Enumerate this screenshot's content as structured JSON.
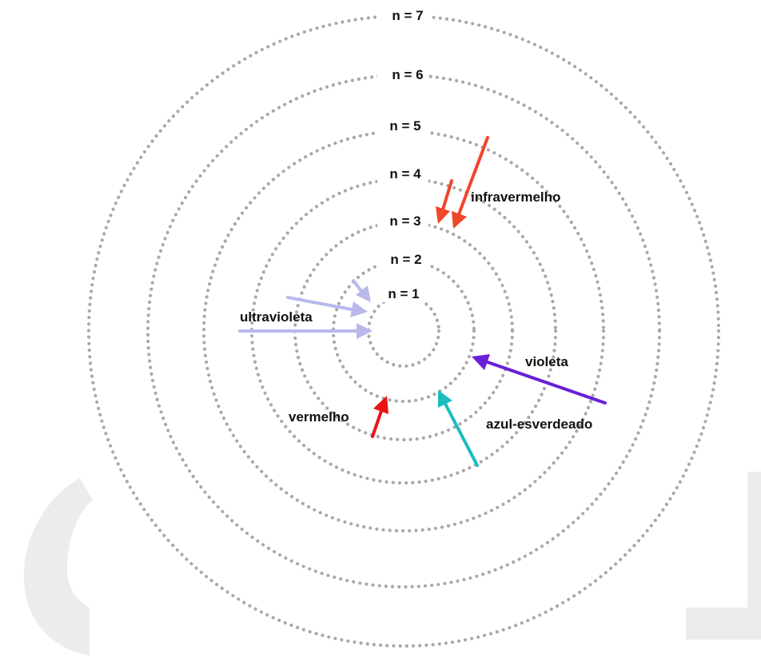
{
  "colors": {
    "orbit": "#a8a8a8",
    "watermark": "#ececec",
    "infravermelho": "#f0462a",
    "ultravioleta": "#b9b9ee",
    "violeta": "#6a1fd6",
    "azul_esverdeado": "#1bbdbd",
    "vermelho": "#ea1313"
  },
  "levels": [
    {
      "n": 1,
      "label": "n = 1"
    },
    {
      "n": 2,
      "label": "n = 2"
    },
    {
      "n": 3,
      "label": "n = 3"
    },
    {
      "n": 4,
      "label": "n = 4"
    },
    {
      "n": 5,
      "label": "n = 5"
    },
    {
      "n": 6,
      "label": "n = 6"
    },
    {
      "n": 7,
      "label": "n = 7"
    }
  ],
  "transitions": [
    {
      "label": "infravermelho",
      "color_key": "infravermelho",
      "from_n": 5,
      "to_n": 3
    },
    {
      "label": "infravermelho",
      "color_key": "infravermelho",
      "from_n": 4,
      "to_n": 3
    },
    {
      "label": "ultravioleta",
      "color_key": "ultravioleta",
      "from_n": 4,
      "to_n": 1
    },
    {
      "label": "ultravioleta",
      "color_key": "ultravioleta",
      "from_n": 3,
      "to_n": 1
    },
    {
      "label": "ultravioleta",
      "color_key": "ultravioleta",
      "from_n": 2,
      "to_n": 1
    },
    {
      "label": "violeta",
      "color_key": "violeta",
      "from_n": 5,
      "to_n": 2
    },
    {
      "label": "azul-esverdeado",
      "color_key": "azul_esverdeado",
      "from_n": 4,
      "to_n": 2
    },
    {
      "label": "vermelho",
      "color_key": "vermelho",
      "from_n": 3,
      "to_n": 2
    }
  ],
  "transition_labels": {
    "infravermelho": "infravermelho",
    "ultravioleta": "ultravioleta",
    "violeta": "violeta",
    "azul_esverdeado": "azul-esverdeado",
    "vermelho": "vermelho"
  }
}
